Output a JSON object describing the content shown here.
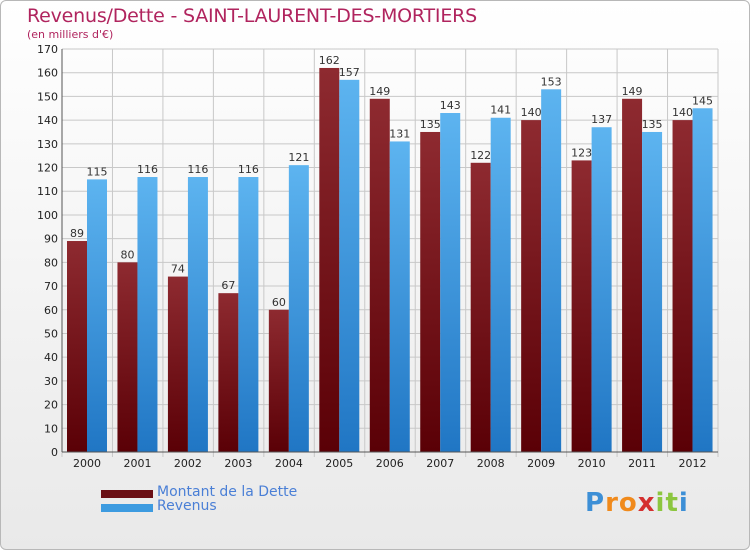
{
  "header": {
    "title": "Revenus/Dette - SAINT-LAURENT-DES-MORTIERS",
    "subtitle": "(en milliers d'€)"
  },
  "chart_data": {
    "type": "bar",
    "categories": [
      "2000",
      "2001",
      "2002",
      "2003",
      "2004",
      "2005",
      "2006",
      "2007",
      "2008",
      "2009",
      "2010",
      "2011",
      "2012"
    ],
    "series": [
      {
        "name": "Montant de la Dette",
        "values": [
          89,
          80,
          74,
          67,
          60,
          162,
          149,
          135,
          122,
          140,
          123,
          149,
          140
        ],
        "color": "#7a1a22"
      },
      {
        "name": "Revenus",
        "values": [
          115,
          116,
          116,
          116,
          121,
          157,
          131,
          143,
          141,
          153,
          137,
          135,
          145
        ],
        "color": "#3d9be0"
      }
    ],
    "ylim": [
      0,
      170
    ],
    "yticks": [
      0,
      10,
      20,
      30,
      40,
      50,
      60,
      70,
      80,
      90,
      100,
      110,
      120,
      130,
      140,
      150,
      160,
      170
    ],
    "grid": true,
    "legend_position": "bottom-left"
  },
  "legend": {
    "items": [
      {
        "label": "Montant de la Dette",
        "color": "#6b0f14"
      },
      {
        "label": "Revenus",
        "color": "#3d9be0"
      }
    ]
  },
  "logo": {
    "letters": [
      "P",
      "r",
      "o",
      "x",
      "i",
      "t",
      "i"
    ],
    "colors": [
      "#3d8fd6",
      "#f08a1c",
      "#f08a1c",
      "#d43030",
      "#8cc63f",
      "#8cc63f",
      "#3d8fd6"
    ]
  }
}
